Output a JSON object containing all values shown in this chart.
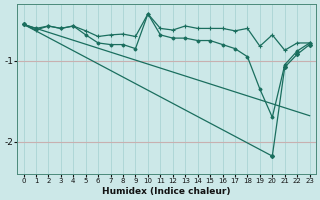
{
  "xlabel": "Humidex (Indice chaleur)",
  "bg_color": "#cce8e8",
  "grid_color_v": "#aad4d4",
  "grid_color_h": "#c8b0b0",
  "line_color": "#1a6e5e",
  "xlim": [
    -0.5,
    23.5
  ],
  "ylim": [
    -2.4,
    -0.3
  ],
  "yticks": [
    -2,
    -1
  ],
  "xticks": [
    0,
    1,
    2,
    3,
    4,
    5,
    6,
    7,
    8,
    9,
    10,
    11,
    12,
    13,
    14,
    15,
    16,
    17,
    18,
    19,
    20,
    21,
    22,
    23
  ],
  "line1_x": [
    0,
    1,
    2,
    3,
    4,
    5,
    6,
    7,
    8,
    9,
    10,
    11,
    12,
    13,
    14,
    15,
    16,
    17,
    18,
    19,
    20,
    21,
    22,
    23
  ],
  "line1_y": [
    -0.55,
    -0.62,
    -0.57,
    -0.6,
    -0.57,
    -0.63,
    -0.7,
    -0.68,
    -0.67,
    -0.7,
    -0.42,
    -0.6,
    -0.62,
    -0.57,
    -0.6,
    -0.6,
    -0.6,
    -0.63,
    -0.6,
    -0.82,
    -0.68,
    -0.87,
    -0.78,
    -0.78
  ],
  "line2_x": [
    0,
    1,
    2,
    3,
    4,
    5,
    6,
    7,
    8,
    9,
    10,
    11,
    12,
    13,
    14,
    15,
    16,
    17,
    18,
    19,
    20,
    21,
    22,
    23
  ],
  "line2_y": [
    -0.55,
    -0.6,
    -0.57,
    -0.6,
    -0.57,
    -0.68,
    -0.78,
    -0.8,
    -0.8,
    -0.85,
    -0.42,
    -0.68,
    -0.72,
    -0.72,
    -0.75,
    -0.75,
    -0.8,
    -0.85,
    -0.95,
    -1.35,
    -1.7,
    -1.05,
    -0.88,
    -0.78
  ],
  "line3_x": [
    0,
    23
  ],
  "line3_y": [
    -0.55,
    -1.68
  ],
  "line4_x": [
    0,
    20,
    21,
    22,
    23
  ],
  "line4_y": [
    -0.55,
    -2.18,
    -1.08,
    -0.92,
    -0.8
  ]
}
